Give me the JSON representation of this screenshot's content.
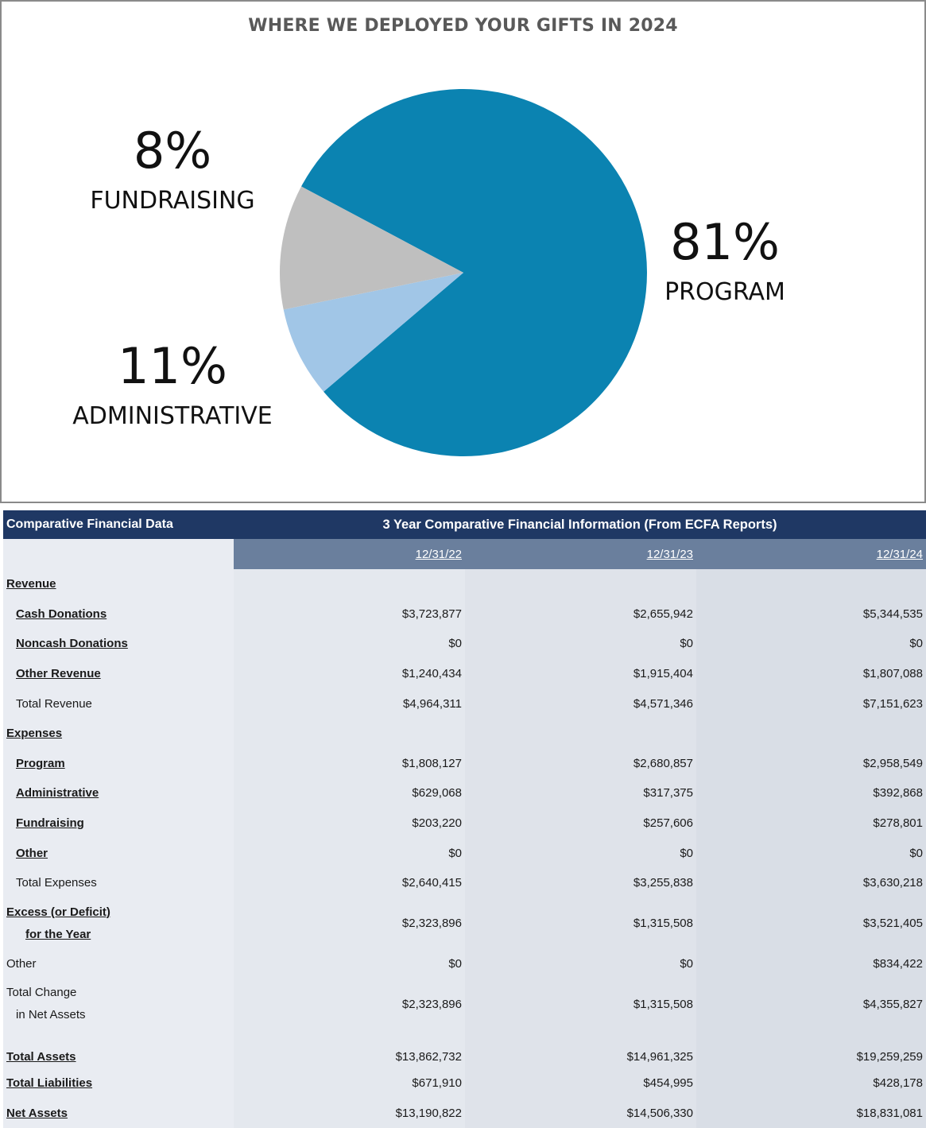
{
  "chart_data": {
    "type": "pie",
    "title": "WHERE WE DEPLOYED YOUR GIFTS IN 2024",
    "slices": [
      {
        "label": "PROGRAM",
        "value": 81,
        "display": "81%",
        "color": "#0b83b1"
      },
      {
        "label": "FUNDRAISING",
        "value": 8,
        "display": "8%",
        "color": "#a1c6e7"
      },
      {
        "label": "ADMINISTRATIVE",
        "value": 11,
        "display": "11%",
        "color": "#bfbfbf"
      }
    ]
  },
  "table": {
    "header_left": "Comparative Financial Data",
    "header_right": "3 Year Comparative Financial Information (From ECFA Reports)",
    "dates": [
      "12/31/22",
      "12/31/23",
      "12/31/24"
    ],
    "revenue_label": "Revenue",
    "cash_donations": {
      "label": "Cash Donations",
      "values": [
        "$3,723,877",
        "$2,655,942",
        "$5,344,535"
      ]
    },
    "noncash_donations": {
      "label": "Noncash Donations",
      "values": [
        "$0",
        "$0",
        "$0"
      ]
    },
    "other_revenue": {
      "label": "Other Revenue",
      "values": [
        "$1,240,434",
        "$1,915,404",
        "$1,807,088"
      ]
    },
    "total_revenue": {
      "label": "Total Revenue",
      "values": [
        "$4,964,311",
        "$4,571,346",
        "$7,151,623"
      ]
    },
    "expenses_label": "Expenses",
    "program": {
      "label": "Program",
      "values": [
        "$1,808,127",
        "$2,680,857",
        "$2,958,549"
      ]
    },
    "administrative": {
      "label": "Administrative",
      "values": [
        "$629,068",
        "$317,375",
        "$392,868"
      ]
    },
    "fundraising": {
      "label": "Fundraising",
      "values": [
        "$203,220",
        "$257,606",
        "$278,801"
      ]
    },
    "other_expense": {
      "label": "Other",
      "values": [
        "$0",
        "$0",
        "$0"
      ]
    },
    "total_expenses": {
      "label": "Total Expenses",
      "values": [
        "$2,640,415",
        "$3,255,838",
        "$3,630,218"
      ]
    },
    "excess": {
      "label1": "Excess (or Deficit)",
      "label2": "for the Year",
      "values": [
        "$2,323,896",
        "$1,315,508",
        "$3,521,405"
      ]
    },
    "other": {
      "label": "Other",
      "values": [
        "$0",
        "$0",
        "$834,422"
      ]
    },
    "total_change": {
      "label1": "Total Change",
      "label2": "in Net Assets",
      "values": [
        "$2,323,896",
        "$1,315,508",
        "$4,355,827"
      ]
    },
    "total_assets": {
      "label": "Total Assets",
      "values": [
        "$13,862,732",
        "$14,961,325",
        "$19,259,259"
      ]
    },
    "total_liabilities": {
      "label": "Total Liabilities",
      "values": [
        "$671,910",
        "$454,995",
        "$428,178"
      ]
    },
    "net_assets": {
      "label": "Net Assets",
      "values": [
        "$13,190,822",
        "$14,506,330",
        "$18,831,081"
      ]
    }
  }
}
